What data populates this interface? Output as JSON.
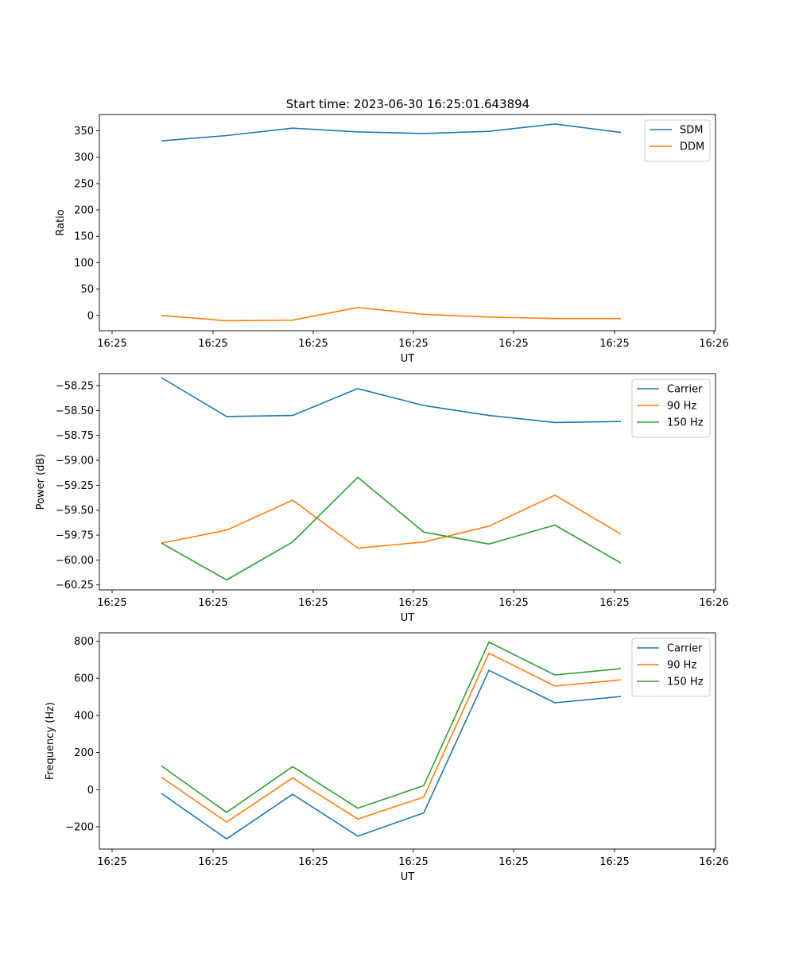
{
  "figure": {
    "title": "Start time: 2023-06-30 16:25:01.643894"
  },
  "chart_data": [
    {
      "type": "line",
      "xlabel": "UT",
      "ylabel": "Ratio",
      "x_tick_labels": [
        "16:25",
        "16:25",
        "16:25",
        "16:25",
        "16:25",
        "16:25",
        "16:26"
      ],
      "y_tick_labels": [
        "0",
        "50",
        "100",
        "150",
        "200",
        "250",
        "300",
        "350"
      ],
      "ylim": [
        -29,
        381
      ],
      "legend_position": "top-right",
      "grid": false,
      "x": [
        1,
        2,
        3,
        4,
        5,
        6,
        7,
        8
      ],
      "series": [
        {
          "name": "SDM",
          "color": "#1f77b4",
          "values": [
            331,
            341,
            355,
            348,
            345,
            349,
            363,
            347
          ]
        },
        {
          "name": "DDM",
          "color": "#ff7f0e",
          "values": [
            0,
            -10,
            -9,
            15,
            2,
            -3,
            -6,
            -6
          ]
        }
      ]
    },
    {
      "type": "line",
      "xlabel": "UT",
      "ylabel": "Power (dB)",
      "x_tick_labels": [
        "16:25",
        "16:25",
        "16:25",
        "16:25",
        "16:25",
        "16:25",
        "16:26"
      ],
      "y_tick_labels": [
        "−60.25",
        "−60.00",
        "−59.75",
        "−59.50",
        "−59.25",
        "−59.00",
        "−58.75",
        "−58.50",
        "−58.25"
      ],
      "ylim": [
        -60.3,
        -58.13
      ],
      "legend_position": "top-right",
      "grid": false,
      "x": [
        1,
        2,
        3,
        4,
        5,
        6,
        7,
        8
      ],
      "series": [
        {
          "name": "Carrier",
          "color": "#1f77b4",
          "values": [
            -58.17,
            -58.56,
            -58.55,
            -58.28,
            -58.45,
            -58.55,
            -58.62,
            -58.61
          ]
        },
        {
          "name": "90 Hz",
          "color": "#ff7f0e",
          "values": [
            -59.83,
            -59.7,
            -59.4,
            -59.88,
            -59.82,
            -59.66,
            -59.35,
            -59.74
          ]
        },
        {
          "name": "150 Hz",
          "color": "#2ca02c",
          "values": [
            -59.83,
            -60.2,
            -59.82,
            -59.17,
            -59.72,
            -59.84,
            -59.65,
            -60.03
          ]
        }
      ]
    },
    {
      "type": "line",
      "xlabel": "UT",
      "ylabel": "Frequency (Hz)",
      "x_tick_labels": [
        "16:25",
        "16:25",
        "16:25",
        "16:25",
        "16:25",
        "16:25",
        "16:26"
      ],
      "y_tick_labels": [
        "−200",
        "0",
        "200",
        "400",
        "600",
        "800"
      ],
      "ylim": [
        -320,
        845
      ],
      "legend_position": "top-right",
      "grid": false,
      "x": [
        1,
        2,
        3,
        4,
        5,
        6,
        7,
        8
      ],
      "series": [
        {
          "name": "Carrier",
          "color": "#1f77b4",
          "values": [
            -20,
            -265,
            -25,
            -250,
            -125,
            643,
            468,
            502
          ]
        },
        {
          "name": "90 Hz",
          "color": "#ff7f0e",
          "values": [
            67,
            -175,
            63,
            -158,
            -40,
            735,
            558,
            592
          ]
        },
        {
          "name": "150 Hz",
          "color": "#2ca02c",
          "values": [
            128,
            -122,
            124,
            -100,
            22,
            795,
            618,
            652
          ]
        }
      ]
    }
  ]
}
